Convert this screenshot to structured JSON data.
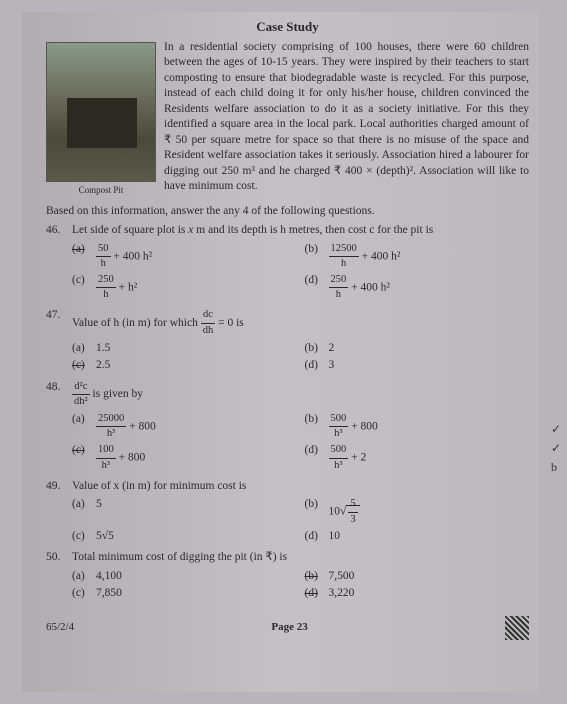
{
  "title": "Case Study",
  "figure_caption": "Compost Pit",
  "intro": "In a residential society comprising of 100 houses, there were 60 children between the ages of 10-15 years. They were inspired by their teachers to start composting to ensure that biodegradable waste is recycled. For this purpose, instead of each child doing it for only his/her house, children convinced the Residents welfare association to do it as a society initiative. For this they identified a square area in the local park. Local authorities charged amount of ₹ 50 per square metre for space so that there is no misuse of the space and Resident welfare association takes it seriously. Association hired a labourer for digging out 250 m³ and he charged ₹ 400 × (depth)². Association will like to have minimum cost.",
  "based": "Based on this information, answer the any 4 of the following questions.",
  "q46": {
    "num": "46.",
    "text_pre": "Let side of square plot is ",
    "text_mid": " m and its depth is h metres, then cost c for the pit is",
    "var": "x",
    "a": {
      "lab": "(a)",
      "num": "50",
      "den": "h",
      "suffix": " + 400 h²"
    },
    "b": {
      "lab": "(b)",
      "num": "12500",
      "den": "h",
      "suffix": " + 400 h²"
    },
    "c": {
      "lab": "(c)",
      "num": "250",
      "den": "h",
      "suffix": " + h²"
    },
    "d": {
      "lab": "(d)",
      "num": "250",
      "den": "h",
      "suffix": " + 400 h²"
    }
  },
  "q47": {
    "num": "47.",
    "text": "Value of h (in m) for which ",
    "frac_n": "dc",
    "frac_d": "dh",
    "suffix": " = 0 is",
    "a": {
      "lab": "(a)",
      "val": "1.5"
    },
    "b": {
      "lab": "(b)",
      "val": "2"
    },
    "c": {
      "lab": "(c)",
      "val": "2.5"
    },
    "d": {
      "lab": "(d)",
      "val": "3"
    }
  },
  "q48": {
    "num": "48.",
    "frac_n": "d²c",
    "frac_d": "dh²",
    "text": " is given by",
    "a": {
      "lab": "(a)",
      "num": "25000",
      "den": "h³",
      "suffix": " + 800"
    },
    "b": {
      "lab": "(b)",
      "num": "500",
      "den": "h³",
      "suffix": " + 800"
    },
    "c": {
      "lab": "(c)",
      "num": "100",
      "den": "h³",
      "suffix": " + 800"
    },
    "d": {
      "lab": "(d)",
      "num": "500",
      "den": "h³",
      "suffix": " + 2"
    }
  },
  "q49": {
    "num": "49.",
    "text": "Value of x (in m) for minimum cost is",
    "a": {
      "lab": "(a)",
      "val": "5"
    },
    "b": {
      "lab": "(b)",
      "pre": "10",
      "sqrt_n": "5",
      "sqrt_d": "3"
    },
    "c": {
      "lab": "(c)",
      "val": "5√5"
    },
    "d": {
      "lab": "(d)",
      "val": "10"
    }
  },
  "q50": {
    "num": "50.",
    "text": "Total minimum cost of digging the pit (in ₹) is",
    "a": {
      "lab": "(a)",
      "val": "4,100"
    },
    "b": {
      "lab": "(b)",
      "val": "7,500"
    },
    "c": {
      "lab": "(c)",
      "val": "7,850"
    },
    "d": {
      "lab": "(d)",
      "val": "3,220"
    }
  },
  "footer": {
    "code": "65/2/4",
    "page": "Page 23"
  },
  "handwriting": {
    "t1": "✓",
    "t2": "✓",
    "t3": "b"
  }
}
